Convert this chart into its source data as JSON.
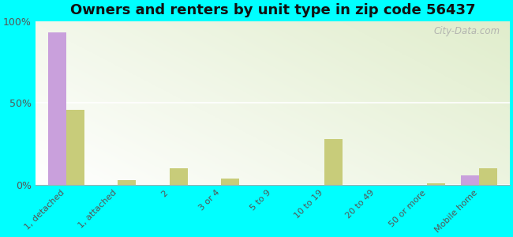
{
  "title": "Owners and renters by unit type in zip code 56437",
  "categories": [
    "1, detached",
    "1, attached",
    "2",
    "3 or 4",
    "5 to 9",
    "10 to 19",
    "20 to 49",
    "50 or more",
    "Mobile home"
  ],
  "owner_values": [
    93,
    0,
    0,
    0,
    0,
    0,
    0,
    0,
    6
  ],
  "renter_values": [
    46,
    3,
    10,
    4,
    0,
    28,
    0,
    1,
    10
  ],
  "owner_color": "#c9a0dc",
  "renter_color": "#c8cc7a",
  "bg_color": "#00ffff",
  "watermark": "City-Data.com",
  "bar_width": 0.35,
  "ylim": [
    0,
    100
  ],
  "yticks": [
    0,
    50,
    100
  ],
  "ytick_labels": [
    "0%",
    "50%",
    "100%"
  ],
  "grad_colors": [
    "#c8d89a",
    "#e8f0c8",
    "#f0f8e0",
    "#f8fdf0"
  ],
  "title_fontsize": 13
}
